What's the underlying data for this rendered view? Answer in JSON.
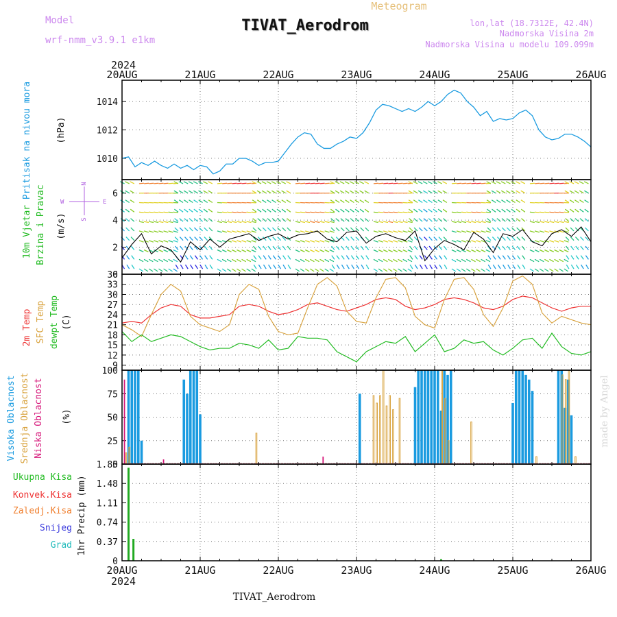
{
  "header": {
    "meteogram_label": "Meteogram",
    "station_title": "TIVAT_Aerodrom",
    "model_label": "Model",
    "model_name": "wrf-nmm_v3.9.1  e1km",
    "lonlat": "lon,lat (18.7312E, 42.4N)",
    "elevation": "Nadmorska Visina 2m",
    "model_elevation": "Nadmorska Visina u modelu 109.099m",
    "footer_station": "TIVAT_Aerodrom",
    "watermark": "made by Angel"
  },
  "colors": {
    "pressure": "#1a9be0",
    "temp2m": "#ee3333",
    "sfc": "#d9a441",
    "dewpt": "#22bb22",
    "high_cloud": "#1a9be0",
    "mid_cloud": "#d9a441",
    "low_cloud": "#d6177a",
    "total_rain": "#22aa22",
    "conv_rain": "#ee3333",
    "frozen": "#f08030",
    "snow": "#3b3bdd",
    "hail": "#22bbbb",
    "title": "#cc88ee",
    "header_orange": "#e6c07a"
  },
  "chart_data": [
    {
      "type": "line",
      "title": "Pritisak na nivou mora",
      "ylabel": "(hPa)",
      "ylim": [
        1008.5,
        1015.5
      ],
      "yticks": [
        1010,
        1012,
        1014
      ],
      "xlim": [
        0,
        144
      ],
      "xticks": [
        0,
        24,
        48,
        72,
        96,
        120,
        144
      ],
      "xticklabels": [
        "20AUG",
        "21AUG",
        "22AUG",
        "23AUG",
        "24AUG",
        "25AUG",
        "26AUG"
      ],
      "year": "2024",
      "grid": true,
      "series": [
        {
          "name": "Pritisak na nivou mora",
          "x": [
            0,
            2,
            4,
            6,
            8,
            10,
            12,
            14,
            16,
            18,
            20,
            22,
            24,
            26,
            28,
            30,
            32,
            34,
            36,
            38,
            40,
            42,
            44,
            46,
            48,
            50,
            52,
            54,
            56,
            58,
            60,
            62,
            64,
            66,
            68,
            70,
            72,
            74,
            76,
            78,
            80,
            82,
            84,
            86,
            88,
            90,
            92,
            94,
            96,
            98,
            100,
            102,
            104,
            106,
            108,
            110,
            112,
            114,
            116,
            118,
            120,
            122,
            124,
            126,
            128,
            130,
            132,
            134,
            136,
            138,
            140,
            142,
            144
          ],
          "y": [
            1010.0,
            1010.1,
            1009.4,
            1009.7,
            1009.5,
            1009.8,
            1009.5,
            1009.3,
            1009.6,
            1009.3,
            1009.5,
            1009.2,
            1009.5,
            1009.4,
            1008.9,
            1009.1,
            1009.6,
            1009.6,
            1010.0,
            1010.0,
            1009.8,
            1009.5,
            1009.7,
            1009.7,
            1009.8,
            1010.4,
            1011.0,
            1011.5,
            1011.8,
            1011.7,
            1011.0,
            1010.7,
            1010.7,
            1011.0,
            1011.2,
            1011.5,
            1011.4,
            1011.8,
            1012.5,
            1013.4,
            1013.8,
            1013.7,
            1013.5,
            1013.3,
            1013.5,
            1013.3,
            1013.6,
            1014.0,
            1013.7,
            1014.0,
            1014.5,
            1014.8,
            1014.6,
            1014.0,
            1013.6,
            1013.0,
            1013.3,
            1012.6,
            1012.8,
            1012.7,
            1012.8,
            1013.2,
            1013.4,
            1013.0,
            1012.0,
            1011.5,
            1011.3,
            1011.4,
            1011.7,
            1011.7,
            1011.5,
            1011.2,
            1010.8
          ]
        }
      ]
    },
    {
      "type": "line",
      "title": "10m Vjetar Brzina i Pravac",
      "ylabel": "(m/s)",
      "ylim": [
        0,
        7
      ],
      "yticks": [
        0,
        2,
        4,
        6
      ],
      "xlim": [
        0,
        144
      ],
      "grid": true,
      "compass": {
        "north": "N",
        "south": "S",
        "west": "W",
        "east": "E"
      },
      "series": [
        {
          "name": "10m Vjetar Brzina i Pravac",
          "x": [
            0,
            3,
            6,
            9,
            12,
            15,
            18,
            21,
            24,
            27,
            30,
            33,
            36,
            39,
            42,
            45,
            48,
            51,
            54,
            57,
            60,
            63,
            66,
            69,
            72,
            75,
            78,
            81,
            84,
            87,
            90,
            93,
            96,
            99,
            102,
            105,
            108,
            111,
            114,
            117,
            120,
            123,
            126,
            129,
            132,
            135,
            138,
            141,
            144
          ],
          "y": [
            1.2,
            2.2,
            3.0,
            1.5,
            2.1,
            1.8,
            0.9,
            2.4,
            1.8,
            2.6,
            2.0,
            2.6,
            2.8,
            3.0,
            2.5,
            2.8,
            3.0,
            2.6,
            2.9,
            3.0,
            3.2,
            2.6,
            2.4,
            3.1,
            3.2,
            2.3,
            2.8,
            3.0,
            2.7,
            2.5,
            3.2,
            1.0,
            1.9,
            2.5,
            2.2,
            1.8,
            3.1,
            2.6,
            1.6,
            3.0,
            2.8,
            3.3,
            2.4,
            2.1,
            3.0,
            3.3,
            2.8,
            3.5,
            2.4
          ]
        }
      ]
    },
    {
      "type": "line",
      "title": "2m Temp / SFC Temp / dewpt Temp",
      "ylabel": "(C)",
      "ylim": [
        7.5,
        36
      ],
      "yticks": [
        9,
        12,
        15,
        18,
        21,
        24,
        27,
        30,
        33,
        36
      ],
      "xlim": [
        0,
        144
      ],
      "grid": true,
      "series": [
        {
          "name": "2m Temp",
          "x": [
            0,
            3,
            6,
            9,
            12,
            15,
            18,
            21,
            24,
            27,
            30,
            33,
            36,
            39,
            42,
            45,
            48,
            51,
            54,
            57,
            60,
            63,
            66,
            69,
            72,
            75,
            78,
            81,
            84,
            87,
            90,
            93,
            96,
            99,
            102,
            105,
            108,
            111,
            114,
            117,
            120,
            123,
            126,
            129,
            132,
            135,
            138,
            141,
            144
          ],
          "y": [
            21.5,
            22.0,
            21.5,
            24.0,
            26.0,
            27.0,
            26.5,
            24.0,
            23.0,
            23.0,
            23.5,
            24.0,
            26.5,
            27.0,
            26.5,
            25.0,
            24.0,
            24.5,
            25.5,
            27.0,
            27.5,
            26.5,
            25.5,
            25.0,
            26.0,
            27.0,
            28.5,
            29.0,
            28.5,
            26.5,
            25.5,
            26.0,
            27.0,
            28.5,
            29.0,
            28.5,
            27.5,
            26.0,
            25.5,
            26.5,
            28.5,
            29.5,
            29.0,
            27.5,
            26.0,
            25.0,
            26.0,
            26.5,
            26.5
          ]
        },
        {
          "name": "SFC Temp",
          "x": [
            0,
            3,
            6,
            9,
            12,
            15,
            18,
            21,
            24,
            27,
            30,
            33,
            36,
            39,
            42,
            45,
            48,
            51,
            54,
            57,
            60,
            63,
            66,
            69,
            72,
            75,
            78,
            81,
            84,
            87,
            90,
            93,
            96,
            99,
            102,
            105,
            108,
            111,
            114,
            117,
            120,
            123,
            126,
            129,
            132,
            135,
            138,
            141,
            144
          ],
          "y": [
            21.0,
            19.5,
            17.5,
            24.0,
            30.0,
            33.0,
            31.0,
            23.5,
            21.0,
            20.0,
            19.0,
            21.0,
            30.0,
            33.0,
            31.5,
            23.5,
            19.0,
            18.0,
            18.5,
            26.0,
            33.0,
            35.0,
            32.5,
            25.0,
            22.0,
            21.5,
            29.0,
            34.5,
            35.0,
            32.0,
            23.5,
            21.0,
            20.0,
            28.5,
            34.5,
            35.0,
            31.5,
            24.0,
            20.5,
            26.0,
            34.0,
            35.5,
            33.0,
            24.5,
            21.5,
            23.5,
            22.5,
            21.5,
            21.0
          ]
        },
        {
          "name": "dewpt Temp",
          "x": [
            0,
            3,
            6,
            9,
            12,
            15,
            18,
            21,
            24,
            27,
            30,
            33,
            36,
            39,
            42,
            45,
            48,
            51,
            54,
            57,
            60,
            63,
            66,
            69,
            72,
            75,
            78,
            81,
            84,
            87,
            90,
            93,
            96,
            99,
            102,
            105,
            108,
            111,
            114,
            117,
            120,
            123,
            126,
            129,
            132,
            135,
            138,
            141,
            144
          ],
          "y": [
            19.0,
            16.0,
            18.0,
            16.0,
            17.0,
            18.0,
            17.5,
            16.0,
            14.5,
            13.5,
            14.0,
            14.0,
            15.5,
            15.0,
            14.0,
            16.5,
            13.5,
            14.0,
            17.5,
            17.0,
            17.0,
            16.5,
            13.0,
            11.5,
            10.0,
            13.0,
            14.5,
            16.0,
            15.5,
            17.5,
            13.0,
            15.5,
            18.0,
            13.0,
            14.0,
            16.5,
            15.5,
            16.0,
            13.5,
            12.0,
            14.0,
            16.5,
            17.0,
            14.0,
            18.5,
            14.5,
            12.5,
            12.0,
            13.0
          ]
        }
      ]
    },
    {
      "type": "bar",
      "title": "Visoka / Srednja / Niska Oblacnost",
      "ylabel": "(%)",
      "ylim": [
        0,
        100
      ],
      "yticks": [
        0,
        25,
        50,
        75,
        100
      ],
      "xlim": [
        0,
        144
      ],
      "grid": true,
      "series": [
        {
          "name": "Visoka Oblacnost",
          "x": [
            2,
            3,
            4,
            5,
            6,
            19,
            20,
            21,
            22,
            23,
            24,
            73,
            90,
            91,
            92,
            93,
            94,
            95,
            96,
            97,
            98,
            99,
            100,
            101,
            120,
            121,
            122,
            123,
            124,
            125,
            126,
            134,
            135,
            136,
            137,
            138
          ],
          "y": [
            100,
            100,
            100,
            100,
            25,
            90,
            75,
            100,
            100,
            100,
            53,
            75,
            82,
            100,
            100,
            100,
            100,
            100,
            100,
            100,
            57,
            100,
            95,
            100,
            65,
            100,
            100,
            100,
            95,
            90,
            78,
            100,
            100,
            60,
            90,
            52
          ]
        },
        {
          "name": "Srednja Oblacnost",
          "x": [
            1,
            2,
            41,
            77,
            78,
            79,
            80,
            81,
            82,
            83,
            85,
            98,
            99,
            100,
            107,
            127,
            135,
            136,
            137,
            139
          ],
          "y": [
            12,
            18,
            33,
            73,
            65,
            73,
            100,
            62,
            73,
            58,
            70,
            100,
            70,
            25,
            45,
            8,
            95,
            90,
            100,
            8
          ]
        },
        {
          "name": "Niska Oblacnost",
          "x": [
            1,
            13,
            62
          ],
          "y": [
            90,
            5,
            8
          ]
        }
      ]
    },
    {
      "type": "bar",
      "title": "Ukupna Kisa / Konvek.Kisa / Zaledj.Kisa / Snijeg / Grad",
      "ylabel": "1hr Precip (mm)",
      "ylim": [
        0,
        1.85
      ],
      "yticks": [
        0,
        0.37,
        0.74,
        1.11,
        1.48,
        1.85
      ],
      "xlim": [
        0,
        144
      ],
      "grid": true,
      "series": [
        {
          "name": "Ukupna Kisa",
          "x": [
            2,
            3.5,
            98
          ],
          "y": [
            1.78,
            0.42,
            0.03
          ]
        },
        {
          "name": "Konvek.Kisa",
          "x": [],
          "y": []
        },
        {
          "name": "Zaledj.Kisa",
          "x": [],
          "y": []
        },
        {
          "name": "Snijeg",
          "x": [],
          "y": []
        },
        {
          "name": "Grad",
          "x": [],
          "y": []
        }
      ]
    }
  ]
}
